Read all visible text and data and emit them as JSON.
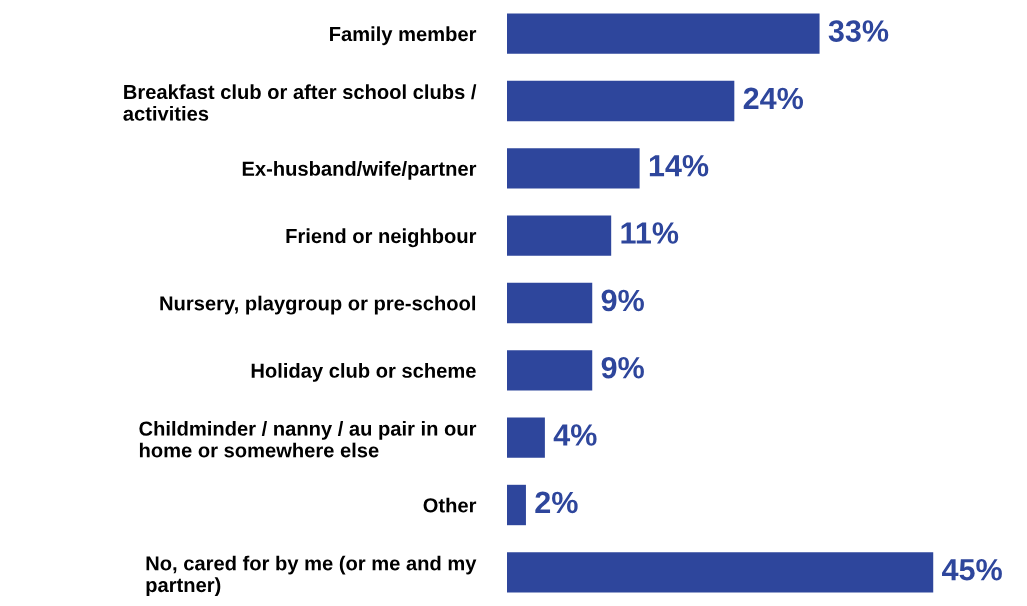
{
  "chart_data": {
    "type": "bar",
    "orientation": "horizontal",
    "categories": [
      "Family member",
      "Breakfast club or after school clubs /\nactivities",
      "Ex-husband/wife/partner",
      "Friend or neighbour",
      "Nursery, playgroup or pre-school",
      "Holiday club or scheme",
      "Childminder / nanny / au pair in our\nhome or somewhere else",
      "Other",
      "No, cared for by me (or me and my\npartner)"
    ],
    "values": [
      33,
      24,
      14,
      11,
      9,
      9,
      4,
      2,
      45
    ],
    "color": "#2e469c",
    "value_labels": [
      "33%",
      "24%",
      "14%",
      "11%",
      "9%",
      "9%",
      "4%",
      "2%",
      "45%"
    ],
    "tick_labels": "y",
    "grid": false,
    "legend": false
  }
}
